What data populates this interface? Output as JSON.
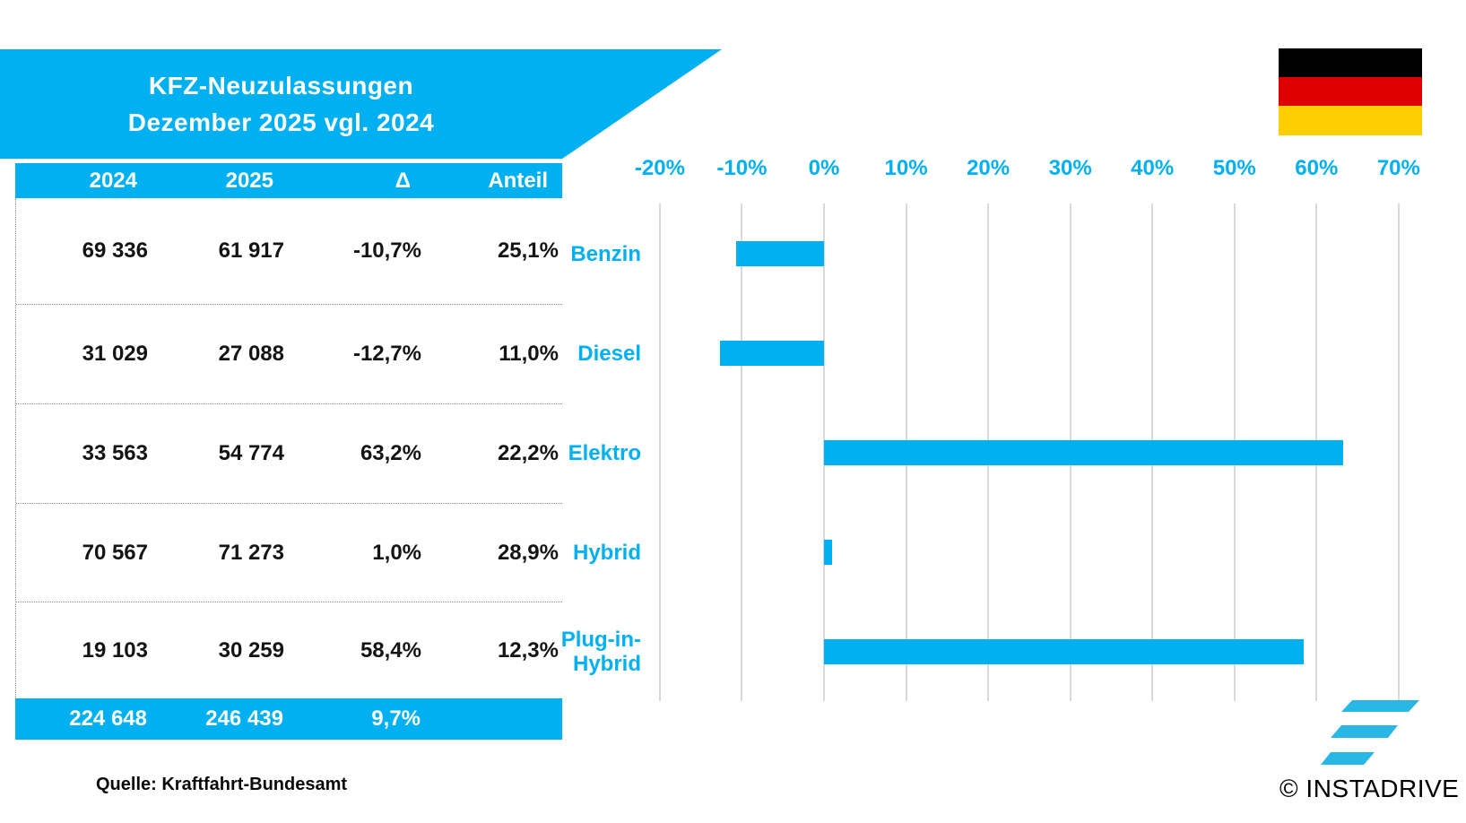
{
  "banner": {
    "title_line1": "KFZ-Neuzulassungen",
    "title_line2": "Dezember 2025 vgl. 2024",
    "color": "#00B0F0"
  },
  "flag": {
    "country": "germany",
    "colors": [
      "#000000",
      "#DD0000",
      "#FFCE00"
    ]
  },
  "table": {
    "headers": [
      "2024",
      "2025",
      "Δ",
      "Anteil"
    ],
    "rows": [
      {
        "label": "Benzin",
        "y2024": "69 336",
        "y2025": "61 917",
        "delta": "-10,7%",
        "anteil": "25,1%"
      },
      {
        "label": "Diesel",
        "y2024": "31 029",
        "y2025": "27 088",
        "delta": "-12,7%",
        "anteil": "11,0%"
      },
      {
        "label": "Elektro",
        "y2024": "33 563",
        "y2025": "54 774",
        "delta": "63,2%",
        "anteil": "22,2%"
      },
      {
        "label": "Hybrid",
        "y2024": "70 567",
        "y2025": "71 273",
        "delta": "1,0%",
        "anteil": "28,9%"
      },
      {
        "label": "Plug-in-Hybrid",
        "y2024": "19 103",
        "y2025": "30 259",
        "delta": "58,4%",
        "anteil": "12,3%"
      }
    ],
    "total": {
      "y2024": "224 648",
      "y2025": "246 439",
      "delta": "9,7%"
    }
  },
  "source": "Quelle: Kraftfahrt-Bundesamt",
  "footer": {
    "copyright": "© INSTADRIVE"
  },
  "chart_data": {
    "type": "bar",
    "orientation": "horizontal",
    "title": "KFZ-Neuzulassungen Dezember 2025 vgl. 2024",
    "categories": [
      "Benzin",
      "Diesel",
      "Elektro",
      "Hybrid",
      "Plug-in-Hybrid"
    ],
    "display_labels": [
      "Benzin",
      "Diesel",
      "Elektro",
      "Hybrid",
      "Plug-in-\nHybrid"
    ],
    "values": [
      -10.7,
      -12.7,
      63.2,
      1.0,
      58.4
    ],
    "xlim": [
      -20,
      70
    ],
    "ticks": [
      -20,
      -10,
      0,
      10,
      20,
      30,
      40,
      50,
      60,
      70
    ],
    "tick_labels": [
      "-20%",
      "-10%",
      "0%",
      "10%",
      "20%",
      "30%",
      "40%",
      "50%",
      "60%",
      "70%"
    ],
    "grid": true,
    "bar_color": "#00B0F0",
    "gridline_color": "#D9D9D9"
  }
}
